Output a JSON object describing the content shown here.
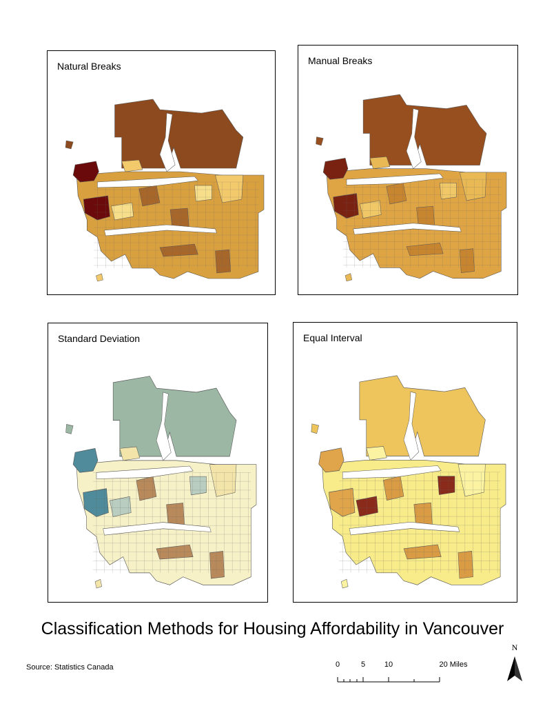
{
  "title": "Classification Methods for Housing Affordability in Vancouver",
  "source": "Source: Statistics Canada",
  "north_label": "N",
  "scale_bar": {
    "ticks": [
      "0",
      "5",
      "10",
      "20 Miles"
    ],
    "values": [
      0,
      5,
      10,
      20
    ]
  },
  "maps": [
    {
      "id": "natural",
      "title": "Natural Breaks",
      "colors": {
        "base": "#d9a040",
        "north": "#8c4a1e",
        "west": "#6b0a0a",
        "mid": "#a8672a",
        "light": "#f2c96b",
        "pale": "#f6de8a"
      }
    },
    {
      "id": "manual",
      "title": "Manual Breaks",
      "colors": {
        "base": "#dfa545",
        "north": "#974f1f",
        "west": "#7a2212",
        "mid": "#c8852f",
        "light": "#e8b955",
        "pale": "#f0c867"
      }
    },
    {
      "id": "stddev",
      "title": "Standard Deviation",
      "colors": {
        "base": "#f7f1c7",
        "north": "#9cb7a4",
        "west": "#4f8b9a",
        "mid": "#b8895a",
        "light": "#f3e4aa",
        "pale": "#b9cdc0"
      }
    },
    {
      "id": "equal",
      "title": "Equal Interval",
      "colors": {
        "base": "#f8ec8a",
        "north": "#edc55c",
        "west": "#e0a54a",
        "mid": "#d99b43",
        "light": "#fbf3a2",
        "pale": "#8a2a1a"
      }
    }
  ]
}
